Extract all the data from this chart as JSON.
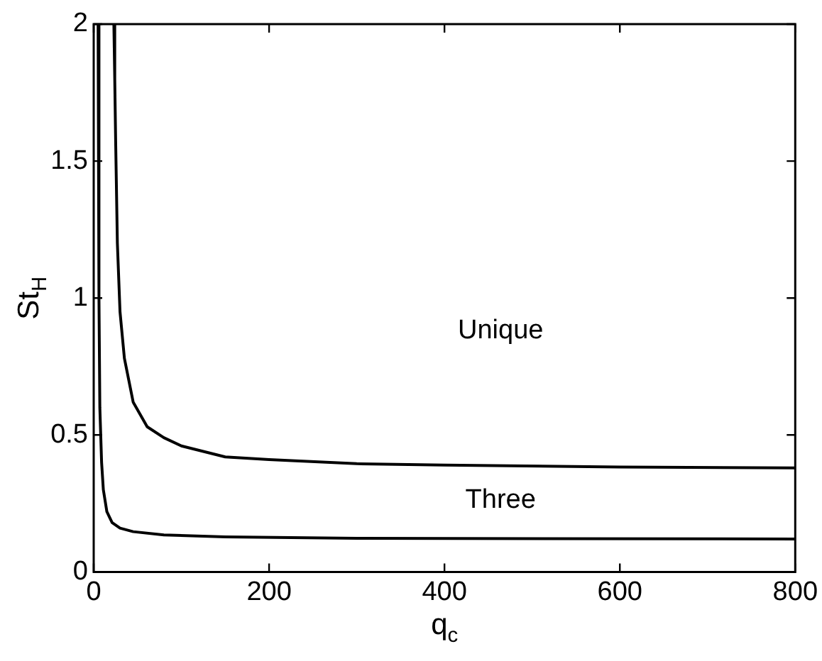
{
  "chart_data": {
    "type": "line",
    "xlabel": "q$_{c}$",
    "ylabel": "St$_{H}$",
    "xlim": [
      0,
      800
    ],
    "ylim": [
      0,
      2
    ],
    "xticks": [
      0,
      200,
      400,
      600,
      800
    ],
    "yticks": [
      0,
      0.5,
      1,
      1.5,
      2
    ],
    "grid": false,
    "legend": false,
    "marker": "none",
    "line_style": "solid",
    "series": [
      {
        "color": "#000000",
        "x": [
          23,
          24,
          25,
          27,
          30,
          35,
          45,
          61,
          80,
          100,
          150,
          200,
          300,
          400,
          600,
          800
        ],
        "values": [
          2,
          1.8,
          1.58,
          1.2,
          0.95,
          0.78,
          0.62,
          0.53,
          0.49,
          0.46,
          0.42,
          0.41,
          0.395,
          0.39,
          0.383,
          0.38
        ]
      },
      {
        "color": "#000000",
        "x": [
          5,
          6,
          7,
          9,
          11,
          15,
          21,
          30,
          45,
          80,
          150,
          300,
          800
        ],
        "values": [
          2,
          1,
          0.6,
          0.4,
          0.3,
          0.22,
          0.18,
          0.16,
          0.147,
          0.135,
          0.128,
          0.123,
          0.12
        ]
      }
    ],
    "annotations": [
      "Unique",
      "Three"
    ]
  }
}
